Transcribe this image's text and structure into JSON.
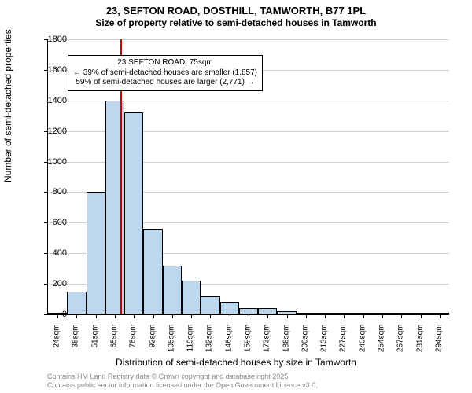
{
  "title_line1": "23, SEFTON ROAD, DOSTHILL, TAMWORTH, B77 1PL",
  "title_line2": "Size of property relative to semi-detached houses in Tamworth",
  "chart": {
    "type": "histogram",
    "ylabel": "Number of semi-detached properties",
    "xlabel": "Distribution of semi-detached houses by size in Tamworth",
    "ylim": [
      0,
      1800
    ],
    "ytick_step": 200,
    "yticks": [
      0,
      200,
      400,
      600,
      800,
      1000,
      1200,
      1400,
      1600,
      1800
    ],
    "xticks": [
      "24sqm",
      "38sqm",
      "51sqm",
      "65sqm",
      "78sqm",
      "92sqm",
      "105sqm",
      "119sqm",
      "132sqm",
      "146sqm",
      "159sqm",
      "173sqm",
      "186sqm",
      "200sqm",
      "213sqm",
      "227sqm",
      "240sqm",
      "254sqm",
      "267sqm",
      "281sqm",
      "294sqm"
    ],
    "bars": [
      10,
      150,
      800,
      1400,
      1320,
      560,
      320,
      220,
      120,
      80,
      40,
      40,
      20,
      5,
      5,
      5,
      5,
      5,
      5,
      5,
      5
    ],
    "bar_fill": "#bdd7ee",
    "bar_border": "#000000",
    "grid_color": "#d0d0d0",
    "background": "#ffffff",
    "refline": {
      "index_between": [
        3,
        4
      ],
      "fraction": 0.77,
      "color": "#cc0000"
    },
    "annotation": {
      "line1": "23 SEFTON ROAD: 75sqm",
      "line2": "← 39% of semi-detached houses are smaller (1,857)",
      "line3": "59% of semi-detached houses are larger (2,771) →"
    }
  },
  "footer_line1": "Contains HM Land Registry data © Crown copyright and database right 2025.",
  "footer_line2": "Contains public sector information licensed under the Open Government Licence v3.0."
}
